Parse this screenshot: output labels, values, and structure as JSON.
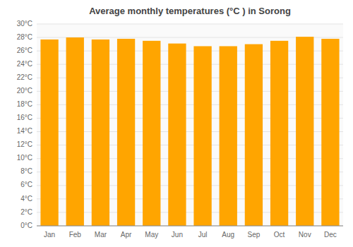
{
  "chart_data": {
    "type": "bar",
    "title": "Average monthly temperatures (°C ) in Sorong",
    "categories": [
      "Jan",
      "Feb",
      "Mar",
      "Apr",
      "May",
      "Jun",
      "Jul",
      "Aug",
      "Sep",
      "Oct",
      "Nov",
      "Dec"
    ],
    "values": [
      27.7,
      28.0,
      27.7,
      27.8,
      27.5,
      27.1,
      26.7,
      26.7,
      27.0,
      27.5,
      28.1,
      27.8
    ],
    "color": "#FFA500",
    "ylim": [
      0,
      30
    ],
    "yticks": [
      {
        "value": 0,
        "label": "0°C"
      },
      {
        "value": 2,
        "label": "2°C"
      },
      {
        "value": 4,
        "label": "4°C"
      },
      {
        "value": 6,
        "label": "6°C"
      },
      {
        "value": 8,
        "label": "8°C"
      },
      {
        "value": 10,
        "label": "10°C"
      },
      {
        "value": 12,
        "label": "12°C"
      },
      {
        "value": 14,
        "label": "14°C"
      },
      {
        "value": 16,
        "label": "16°C"
      },
      {
        "value": 18,
        "label": "18°C"
      },
      {
        "value": 20,
        "label": "20°C"
      },
      {
        "value": 22,
        "label": "22°C"
      },
      {
        "value": 24,
        "label": "24°C"
      },
      {
        "value": 26,
        "label": "26°C"
      },
      {
        "value": 28,
        "label": "28°C"
      },
      {
        "value": 30,
        "label": "30°C"
      }
    ],
    "grid": true
  }
}
